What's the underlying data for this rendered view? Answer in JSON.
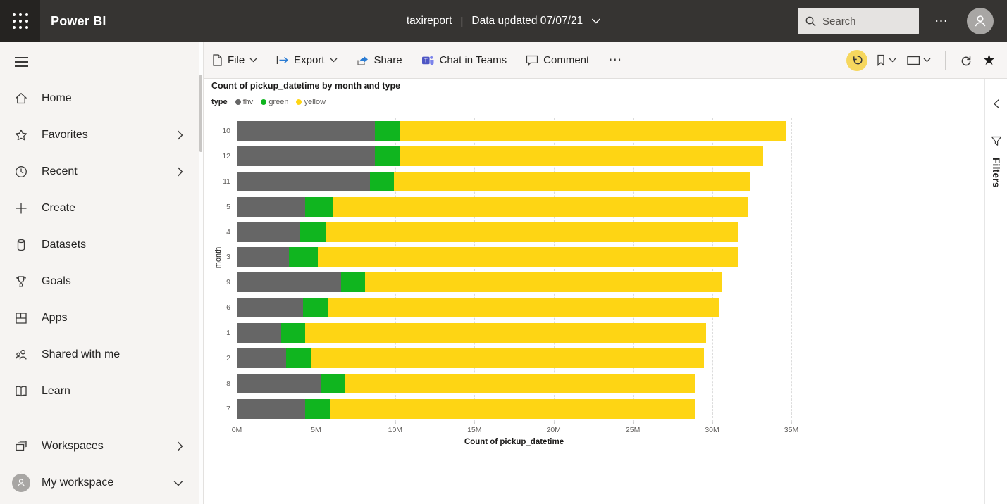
{
  "topbar": {
    "app_name": "Power BI",
    "report_name": "taxireport",
    "pipe": "|",
    "data_updated_label": "Data updated 07/07/21",
    "search_placeholder": "Search",
    "more_icon": "⋯"
  },
  "sidebar": {
    "items": [
      {
        "label": "Home",
        "icon": "home-icon",
        "chevron": "none"
      },
      {
        "label": "Favorites",
        "icon": "star-icon",
        "chevron": "right"
      },
      {
        "label": "Recent",
        "icon": "clock-icon",
        "chevron": "right"
      },
      {
        "label": "Create",
        "icon": "plus-icon",
        "chevron": "none"
      },
      {
        "label": "Datasets",
        "icon": "database-icon",
        "chevron": "none"
      },
      {
        "label": "Goals",
        "icon": "trophy-icon",
        "chevron": "none"
      },
      {
        "label": "Apps",
        "icon": "apps-icon",
        "chevron": "none"
      },
      {
        "label": "Shared with me",
        "icon": "people-icon",
        "chevron": "none"
      },
      {
        "label": "Learn",
        "icon": "book-icon",
        "chevron": "none"
      }
    ],
    "bottom_items": [
      {
        "label": "Workspaces",
        "icon": "workspaces-icon",
        "chevron": "right"
      },
      {
        "label": "My workspace",
        "icon": "workspace-avatar",
        "chevron": "down"
      }
    ]
  },
  "toolbar": {
    "items": [
      {
        "label": "File"
      },
      {
        "label": "Export"
      },
      {
        "label": "Share"
      },
      {
        "label": "Chat in Teams"
      },
      {
        "label": "Comment"
      }
    ],
    "more_icon": "⋯",
    "star_icon": "★"
  },
  "filters_panel": {
    "title": "Filters"
  },
  "chart_data": {
    "type": "bar",
    "orientation": "horizontal-stacked",
    "title": "Count of pickup_datetime by month and type",
    "legend_title": "type",
    "legend_position": "top-left",
    "xlabel": "Count of pickup_datetime",
    "ylabel": "month",
    "values_unit": "millions",
    "xlim": [
      0,
      35
    ],
    "x_ticks": [
      "0M",
      "5M",
      "10M",
      "15M",
      "20M",
      "25M",
      "30M",
      "35M"
    ],
    "grid": "vertical-dashed",
    "categories": [
      "10",
      "12",
      "11",
      "5",
      "4",
      "3",
      "9",
      "6",
      "1",
      "2",
      "8",
      "7"
    ],
    "series": [
      {
        "name": "fhv",
        "color": "#666666",
        "values": [
          8.7,
          8.7,
          8.4,
          4.3,
          4.0,
          3.3,
          6.6,
          4.2,
          2.8,
          3.1,
          5.3,
          4.3
        ]
      },
      {
        "name": "green",
        "color": "#10b51f",
        "values": [
          1.6,
          1.6,
          1.5,
          1.8,
          1.6,
          1.8,
          1.5,
          1.6,
          1.5,
          1.6,
          1.5,
          1.6
        ]
      },
      {
        "name": "yellow",
        "color": "#fed514",
        "values": [
          24.4,
          22.9,
          22.5,
          26.2,
          26.0,
          26.5,
          22.5,
          24.6,
          25.3,
          24.8,
          22.1,
          23.0
        ]
      }
    ]
  }
}
